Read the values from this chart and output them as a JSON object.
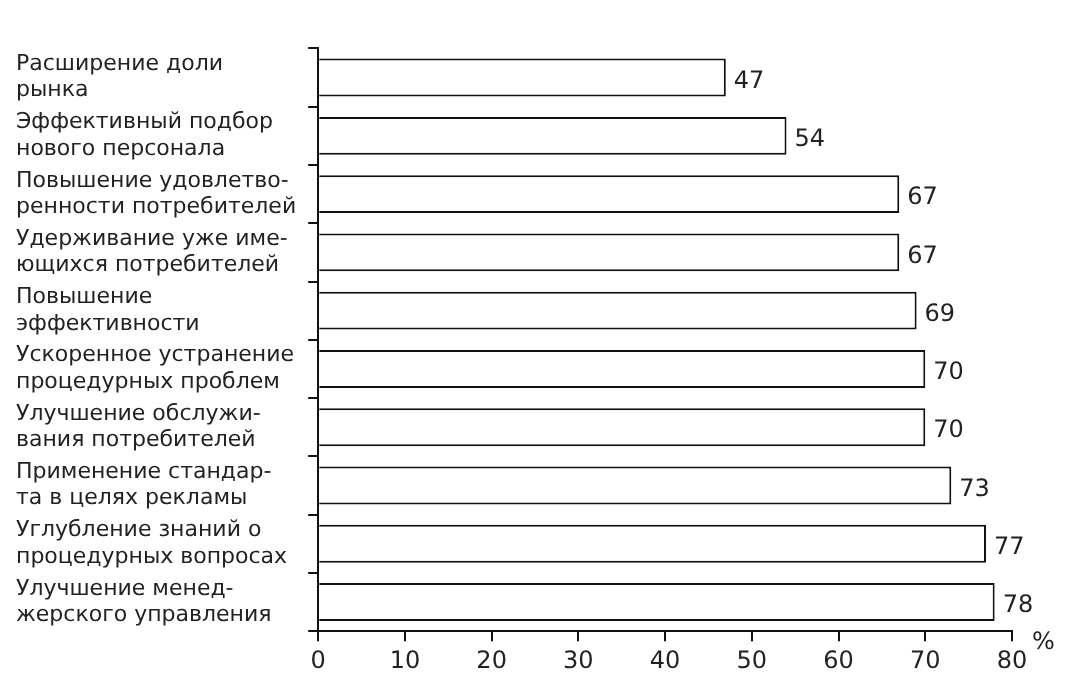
{
  "chart_data": {
    "type": "bar",
    "orientation": "horizontal",
    "xlabel": "%",
    "categories": [
      "Расширение доли\nрынка",
      "Эффективный подбор\nнового персонала",
      "Повышение удовлетво-\nренности потребителей",
      "Удерживание уже име-\nющихся потребителей",
      "Повышение\nэффективности",
      "Ускоренное устранение\nпроцедурных проблем",
      "Улучшение обслужи-\nвания потребителей",
      "Применение стандар-\nта в целях рекламы",
      "Углубление знаний о\nпроцедурных вопросах",
      "Улучшение менед-\nжерского управления"
    ],
    "values": [
      47,
      54,
      67,
      67,
      69,
      70,
      70,
      73,
      77,
      78
    ],
    "color": "#ffffff",
    "xlim": [
      0,
      80
    ],
    "xticks": [
      0,
      10,
      20,
      30,
      40,
      50,
      60,
      70,
      80
    ],
    "data_labels": true,
    "grid": false,
    "legend": false
  }
}
